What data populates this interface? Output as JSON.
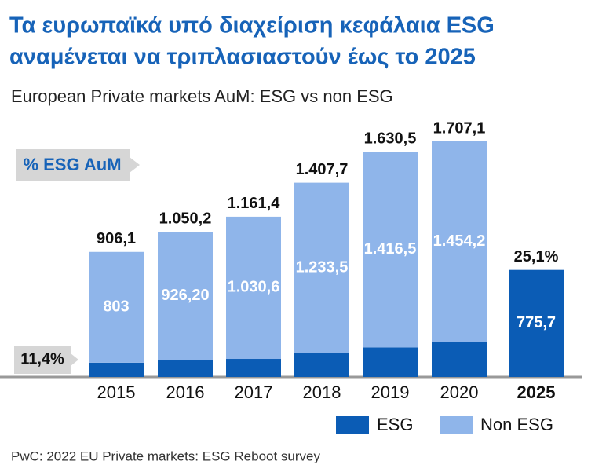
{
  "chart_data": {
    "type": "stacked-bar",
    "title_lines": [
      "Τα ευρωπαϊκά υπό διαχείριση κεφάλαια ESG",
      "αναμένεται να τριπλασιαστούν έως το 2025"
    ],
    "subtitle": "European Private markets AuM: ESG vs non ESG",
    "source": "PwC: 2022 EU Private markets: ESG Reboot survey",
    "annotation_title": "% ESG AuM",
    "categories": [
      "2015",
      "2016",
      "2017",
      "2018",
      "2019",
      "2020",
      "2025"
    ],
    "series": [
      {
        "name": "ESG",
        "color": "#0b5cb5",
        "values": [
          103.1,
          124,
          130.8,
          174.2,
          214,
          252.9,
          775.7
        ],
        "value_labels": [
          "103,1",
          "124",
          "130,8",
          "174,2",
          "214",
          "252,9",
          "775,7"
        ]
      },
      {
        "name": "Non ESG",
        "color": "#8fb5ea",
        "values": [
          803,
          926.2,
          1030.6,
          1233.5,
          1416.5,
          1454.2,
          null
        ],
        "value_labels": [
          "803",
          "926,20",
          "1.030,6",
          "1.233,5",
          "1.416,5",
          "1.454,2",
          null
        ]
      }
    ],
    "totals": [
      906.1,
      1050.2,
      1161.4,
      1407.7,
      1630.5,
      1707.1,
      null
    ],
    "total_labels": [
      "906,1",
      "1.050,2",
      "1.161,4",
      "1.407,7",
      "1.630,5",
      "1.707,1",
      null
    ],
    "esg_share": [
      {
        "category": "2015",
        "value": 11.4,
        "label": "11,4%"
      },
      {
        "category": "2025",
        "value": 25.1,
        "label": "25,1%"
      }
    ]
  }
}
